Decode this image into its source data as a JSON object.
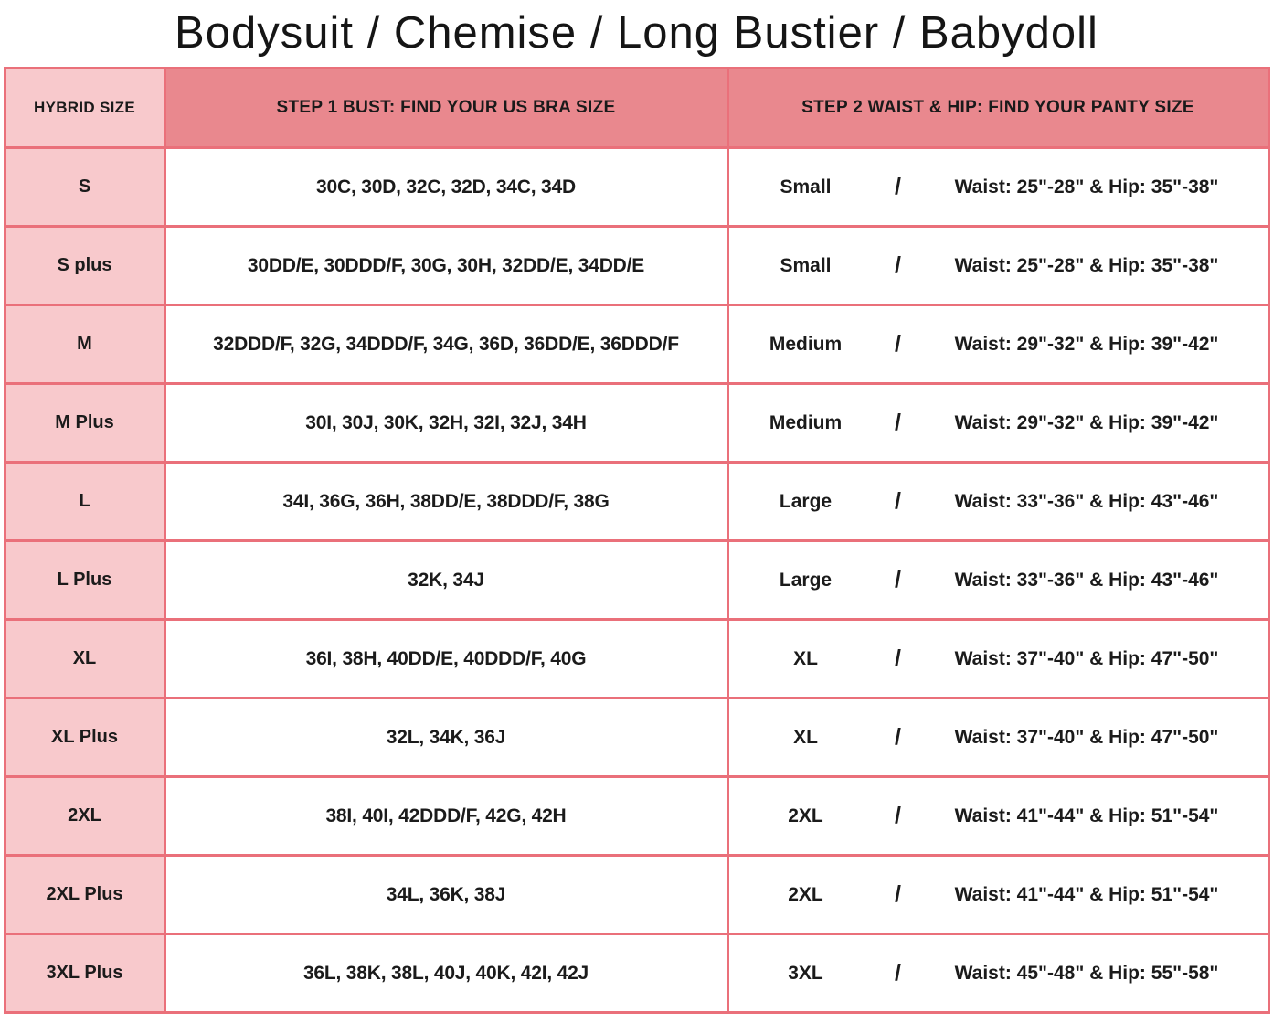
{
  "title": "Bodysuit / Chemise / Long Bustier / Babydoll",
  "colors": {
    "header_bg": "#E9888E",
    "size_column_bg": "#F8C9CC",
    "border": "#EA707A",
    "text": "#1A1A1A",
    "cell_bg": "#FFFFFF"
  },
  "chart_data": {
    "type": "table",
    "title": "Bodysuit / Chemise / Long Bustier / Babydoll",
    "columns": [
      "HYBRID SIZE",
      "STEP 1 BUST: FIND YOUR US BRA SIZE",
      "STEP 2 WAIST & HIP: FIND YOUR PANTY SIZE"
    ],
    "rows": [
      {
        "hybrid_size": "S",
        "bra_sizes": "30C, 30D, 32C, 32D, 34C, 34D",
        "panty_size": "Small",
        "slash": "/",
        "waist_hip": "Waist: 25\"-28\" & Hip: 35\"-38\""
      },
      {
        "hybrid_size": "S plus",
        "bra_sizes": "30DD/E, 30DDD/F, 30G, 30H, 32DD/E,  34DD/E",
        "panty_size": "Small",
        "slash": "/",
        "waist_hip": "Waist: 25\"-28\" & Hip: 35\"-38\""
      },
      {
        "hybrid_size": "M",
        "bra_sizes": "32DDD/F, 32G, 34DDD/F, 34G, 36D,  36DD/E,  36DDD/F",
        "panty_size": "Medium",
        "slash": "/",
        "waist_hip": "Waist: 29\"-32\" & Hip: 39\"-42\""
      },
      {
        "hybrid_size": "M Plus",
        "bra_sizes": "30I, 30J, 30K, 32H,  32I, 32J, 34H",
        "panty_size": "Medium",
        "slash": "/",
        "waist_hip": "Waist: 29\"-32\" & Hip: 39\"-42\""
      },
      {
        "hybrid_size": "L",
        "bra_sizes": "34I, 36G, 36H, 38DD/E, 38DDD/F, 38G",
        "panty_size": "Large",
        "slash": "/",
        "waist_hip": "Waist: 33\"-36\" & Hip: 43\"-46\""
      },
      {
        "hybrid_size": "L Plus",
        "bra_sizes": "32K, 34J",
        "panty_size": "Large",
        "slash": "/",
        "waist_hip": "Waist: 33\"-36\" & Hip: 43\"-46\""
      },
      {
        "hybrid_size": "XL",
        "bra_sizes": "36I, 38H, 40DD/E, 40DDD/F, 40G",
        "panty_size": "XL",
        "slash": "/",
        "waist_hip": "Waist: 37\"-40\" & Hip: 47\"-50\""
      },
      {
        "hybrid_size": "XL Plus",
        "bra_sizes": "32L, 34K, 36J",
        "panty_size": "XL",
        "slash": "/",
        "waist_hip": "Waist: 37\"-40\" & Hip: 47\"-50\""
      },
      {
        "hybrid_size": "2XL",
        "bra_sizes": "38I, 40I, 42DDD/F, 42G, 42H",
        "panty_size": "2XL",
        "slash": "/",
        "waist_hip": "Waist: 41\"-44\" & Hip: 51\"-54\""
      },
      {
        "hybrid_size": "2XL Plus",
        "bra_sizes": "34L, 36K, 38J",
        "panty_size": "2XL",
        "slash": "/",
        "waist_hip": "Waist: 41\"-44\" & Hip: 51\"-54\""
      },
      {
        "hybrid_size": "3XL Plus",
        "bra_sizes": "36L, 38K, 38L, 40J, 40K, 42I, 42J",
        "panty_size": "3XL",
        "slash": "/",
        "waist_hip": "Waist: 45\"-48\" & Hip: 55\"-58\""
      }
    ]
  }
}
